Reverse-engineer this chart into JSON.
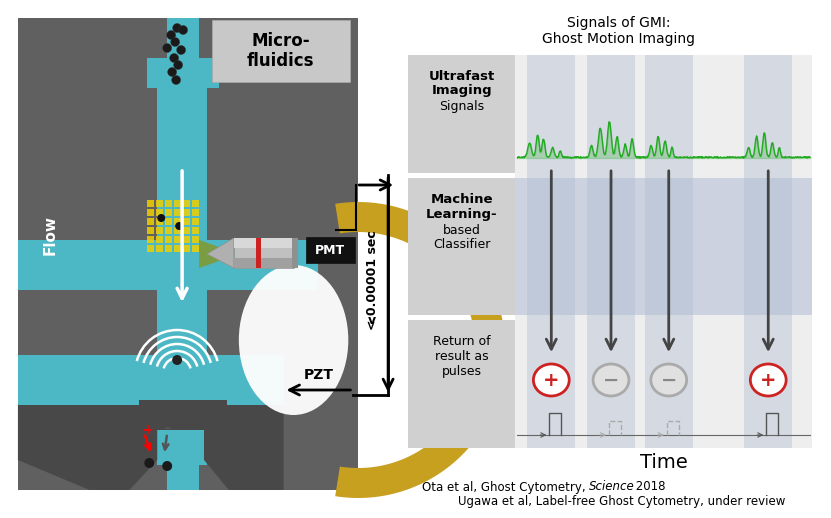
{
  "title": "Signals of GMI:\nGhost Motion Imaging",
  "title_fontsize": 10,
  "bg_color": "#ffffff",
  "left_panel": {
    "bg_color": "#606060",
    "teal_color": "#4db8c5",
    "gold_color": "#c8a020",
    "label_flow": "Flow",
    "label_microfluidics": "Micro-\nfluidics",
    "label_pmt": "PMT",
    "label_pzt": "PZT",
    "label_time": "< 0.00001 sec"
  },
  "right_panel": {
    "label1_bold": "Ultrafast\nImaging",
    "label1_normal": "Signals",
    "label2_bold": "Machine\nLearning-",
    "label2_normal": "based\nClassifier",
    "label3_normal": "Return of\nresult as\npulses",
    "label_time": "Time",
    "signal_color": "#22aa22",
    "strip_color": "#c8d0dc",
    "box_bg": "#d0d0d0",
    "ml_box_color": "#b0bcd4"
  },
  "citation1": "Ota et al, Ghost Cytometry, ",
  "citation1_italic": "Science",
  "citation1_end": " 2018",
  "citation2": "Ugawa et al, Label-free Ghost Cytometry, under review",
  "citation_fontsize": 8.5
}
